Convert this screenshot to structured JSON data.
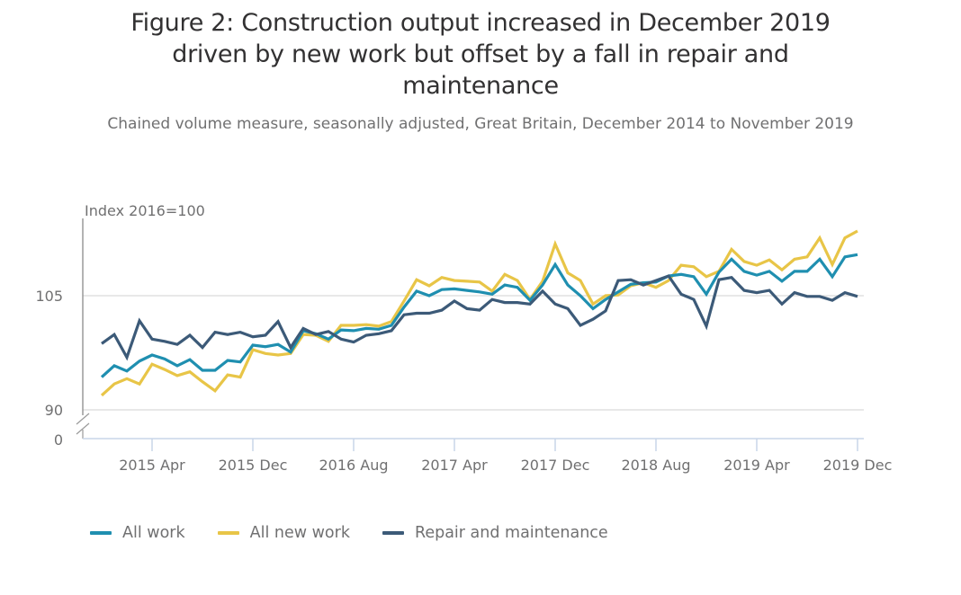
{
  "title": "Figure 2: Construction output increased in December 2019 driven by new work but offset by a fall in repair and maintenance",
  "subtitle": "Chained volume measure, seasonally adjusted, Great Britain, December 2014 to November 2019",
  "chart_data": {
    "type": "line",
    "title": "Figure 2: Construction output increased in December 2019 driven by new work but offset by a fall in repair and maintenance",
    "subtitle": "Chained volume measure, seasonally adjusted, Great Britain, December 2014 to November 2019",
    "ylabel": "Index 2016=100",
    "xlabel": "",
    "ylim": [
      90,
      115
    ],
    "y_axis_break": true,
    "y_break_floor_label": "0",
    "yticks": [
      90,
      105
    ],
    "ytick_labels": [
      "90",
      "105"
    ],
    "xtick_labels": [
      "2015 Apr",
      "2015 Dec",
      "2016 Aug",
      "2017 Apr",
      "2017 Dec",
      "2018 Aug",
      "2019 Apr",
      "2019 Dec"
    ],
    "xtick_indices": [
      4,
      12,
      20,
      28,
      36,
      44,
      52,
      60
    ],
    "grid": "horizontal",
    "legend_position": "bottom-left",
    "x": [
      "2014 Dec",
      "2015 Jan",
      "2015 Feb",
      "2015 Mar",
      "2015 Apr",
      "2015 May",
      "2015 Jun",
      "2015 Jul",
      "2015 Aug",
      "2015 Sep",
      "2015 Oct",
      "2015 Nov",
      "2015 Dec",
      "2016 Jan",
      "2016 Feb",
      "2016 Mar",
      "2016 Apr",
      "2016 May",
      "2016 Jun",
      "2016 Jul",
      "2016 Aug",
      "2016 Sep",
      "2016 Oct",
      "2016 Nov",
      "2016 Dec",
      "2017 Jan",
      "2017 Feb",
      "2017 Mar",
      "2017 Apr",
      "2017 May",
      "2017 Jun",
      "2017 Jul",
      "2017 Aug",
      "2017 Sep",
      "2017 Oct",
      "2017 Nov",
      "2017 Dec",
      "2018 Jan",
      "2018 Feb",
      "2018 Mar",
      "2018 Apr",
      "2018 May",
      "2018 Jun",
      "2018 Jul",
      "2018 Aug",
      "2018 Sep",
      "2018 Oct",
      "2018 Nov",
      "2018 Dec",
      "2019 Jan",
      "2019 Feb",
      "2019 Mar",
      "2019 Apr",
      "2019 May",
      "2019 Jun",
      "2019 Jul",
      "2019 Aug",
      "2019 Sep",
      "2019 Oct",
      "2019 Nov",
      "2019 Dec"
    ],
    "series": [
      {
        "name": "All work",
        "color": "#206095",
        "stroke": "#1f8fb0",
        "values": [
          94.3,
          95.8,
          95.1,
          96.4,
          97.2,
          96.7,
          95.8,
          96.6,
          95.2,
          95.2,
          96.5,
          96.3,
          98.5,
          98.3,
          98.6,
          97.6,
          100.4,
          100.0,
          99.3,
          100.5,
          100.4,
          100.7,
          100.6,
          101.1,
          103.5,
          105.6,
          105.0,
          105.8,
          105.9,
          105.7,
          105.5,
          105.2,
          106.4,
          106.1,
          104.4,
          106.4,
          109.1,
          106.4,
          105.0,
          103.3,
          104.5,
          105.5,
          106.5,
          106.7,
          106.8,
          107.6,
          107.8,
          107.5,
          105.2,
          108.1,
          109.8,
          108.2,
          107.7,
          108.2,
          106.9,
          108.2,
          108.2,
          109.8,
          107.5,
          110.1,
          110.4
        ]
      },
      {
        "name": "All new work",
        "color": "#e8c547",
        "stroke": "#e8c547",
        "values": [
          91.9,
          93.4,
          94.1,
          93.4,
          96.0,
          95.3,
          94.5,
          95.0,
          93.7,
          92.5,
          94.6,
          94.3,
          97.9,
          97.4,
          97.2,
          97.4,
          99.9,
          99.8,
          99.0,
          101.1,
          101.1,
          101.2,
          101.0,
          101.6,
          104.3,
          107.1,
          106.3,
          107.4,
          107.0,
          106.9,
          106.8,
          105.6,
          107.8,
          107.0,
          104.5,
          106.9,
          111.8,
          108.0,
          107.0,
          103.9,
          105.0,
          105.1,
          106.3,
          106.7,
          106.1,
          107.0,
          109.0,
          108.8,
          107.5,
          108.2,
          111.1,
          109.5,
          109.0,
          109.7,
          108.4,
          109.8,
          110.1,
          112.6,
          109.1,
          112.6,
          113.5
        ]
      },
      {
        "name": "Repair and maintenance",
        "color": "#3c5a78",
        "stroke": "#3c5a78",
        "values": [
          98.7,
          99.9,
          96.9,
          101.7,
          99.3,
          99.0,
          98.6,
          99.8,
          98.2,
          100.2,
          99.9,
          100.2,
          99.6,
          99.8,
          101.6,
          98.2,
          100.7,
          99.9,
          100.3,
          99.3,
          98.9,
          99.8,
          100.0,
          100.4,
          102.5,
          102.7,
          102.7,
          103.1,
          104.3,
          103.3,
          103.1,
          104.5,
          104.1,
          104.1,
          103.9,
          105.6,
          103.9,
          103.3,
          101.1,
          101.9,
          103.0,
          107.0,
          107.1,
          106.4,
          107.0,
          107.6,
          105.2,
          104.5,
          101.0,
          107.1,
          107.4,
          105.7,
          105.4,
          105.7,
          103.9,
          105.4,
          104.9,
          104.9,
          104.4,
          105.4,
          104.9
        ]
      }
    ]
  },
  "legend": [
    {
      "label": "All work",
      "color": "#1f8fb0"
    },
    {
      "label": "All new work",
      "color": "#e8c547"
    },
    {
      "label": "Repair and maintenance",
      "color": "#3c5a78"
    }
  ]
}
